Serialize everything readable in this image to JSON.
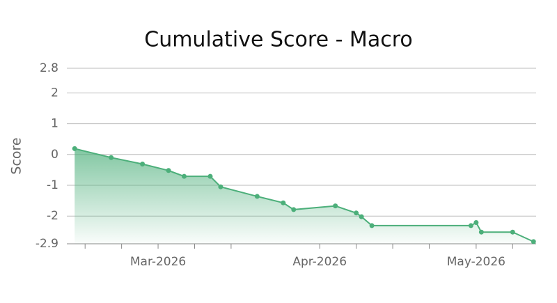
{
  "chart_data": {
    "type": "area",
    "title": "Cumulative Score - Macro",
    "ylabel": "Score",
    "x": [
      44,
      51,
      57,
      62,
      65,
      70,
      72,
      79,
      84,
      86,
      94,
      98,
      99,
      101,
      120,
      121,
      122,
      128,
      132
    ],
    "series": [
      {
        "name": "Score",
        "color": "#4caf7a",
        "values": [
          0.19,
          -0.1,
          -0.31,
          -0.52,
          -0.71,
          -0.71,
          -1.05,
          -1.36,
          -1.57,
          -1.79,
          -1.67,
          -1.9,
          -2.02,
          -2.31,
          -2.31,
          -2.21,
          -2.52,
          -2.52,
          -2.83
        ]
      }
    ],
    "xlim": [
      42.5,
      132.5
    ],
    "xticks": [
      {
        "value": 60,
        "label": "Mar-2026"
      },
      {
        "value": 91,
        "label": "Apr-2026"
      },
      {
        "value": 121,
        "label": "May-2026"
      }
    ],
    "xminorticks": [
      46,
      53,
      67,
      74,
      98,
      105,
      112,
      128
    ],
    "ylim": [
      -2.9,
      2.8
    ],
    "yticks": [
      -2.9,
      -2,
      -1,
      0,
      1,
      2,
      2.8
    ],
    "grid": true
  }
}
